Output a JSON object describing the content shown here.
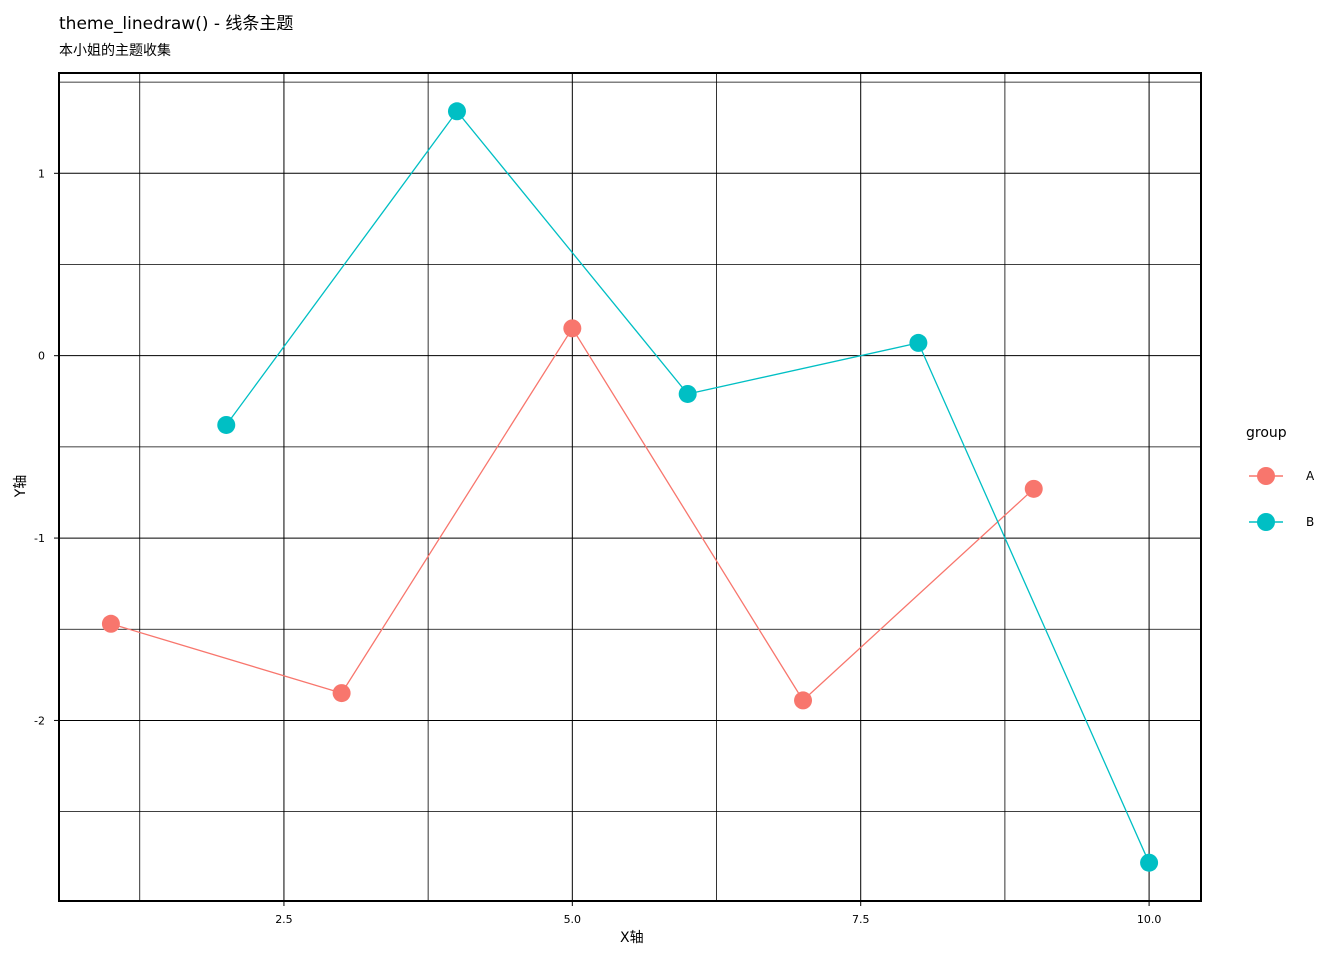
{
  "chart_data": {
    "type": "line",
    "title": "theme_linedraw() - 线条主题",
    "subtitle": "本小姐的主题收集",
    "xlabel": "X轴",
    "ylabel": "Y轴",
    "xlim": [
      0.55,
      10.45
    ],
    "ylim": [
      -2.99,
      1.55
    ],
    "x_ticks": [
      2.5,
      5.0,
      7.5,
      10.0
    ],
    "x_tick_labels": [
      "2.5",
      "5.0",
      "7.5",
      "10.0"
    ],
    "x_minor_ticks": [
      1.25,
      3.75,
      6.25,
      8.75
    ],
    "y_ticks": [
      -2,
      -1,
      0,
      1
    ],
    "y_tick_labels": [
      "-2",
      "-1",
      "0",
      "1"
    ],
    "y_minor_ticks": [
      -2.5,
      -1.5,
      -0.5,
      0.5,
      1.5
    ],
    "grid": true,
    "legend": {
      "title": "group",
      "position": "right"
    },
    "series": [
      {
        "name": "A",
        "color": "#F8766D",
        "x": [
          1,
          3,
          5,
          7,
          9
        ],
        "y": [
          -1.47,
          -1.85,
          0.15,
          -1.89,
          -0.73
        ]
      },
      {
        "name": "B",
        "color": "#00BFC4",
        "x": [
          2,
          4,
          6,
          8,
          10
        ],
        "y": [
          -0.38,
          1.34,
          -0.21,
          0.07,
          -2.78
        ]
      }
    ]
  }
}
